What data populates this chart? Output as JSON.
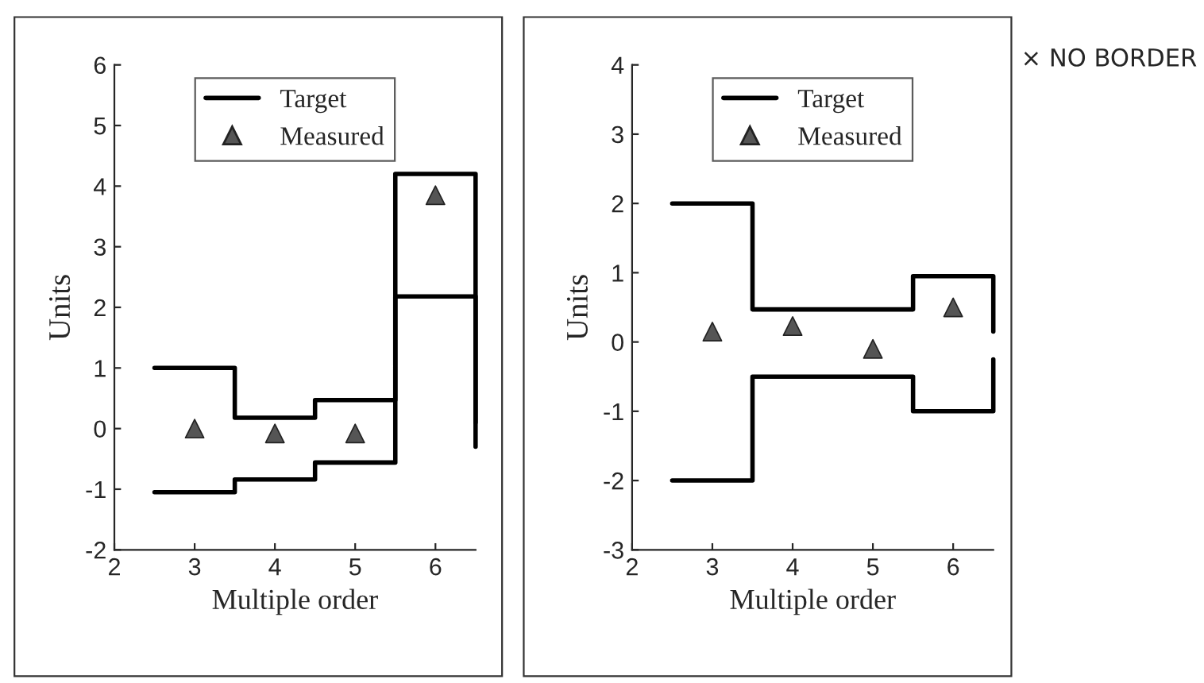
{
  "chart_data": [
    {
      "type": "line",
      "xlabel": "Multiple order",
      "ylabel": "Units",
      "xlim": [
        2,
        6.5
      ],
      "xticks": [
        2,
        3,
        4,
        5,
        6
      ],
      "ylim": [
        -2,
        6
      ],
      "yticks": [
        -2,
        -1,
        0,
        1,
        2,
        3,
        4,
        5,
        6
      ],
      "legend": "top",
      "grid": false,
      "series": [
        {
          "name": "Target",
          "color": "#000000",
          "line_style": "solid",
          "x": [
            2.5,
            3.5,
            3.5,
            4.5,
            4.5,
            5.5,
            5.5,
            6.5,
            6.5
          ],
          "values": [
            1.0,
            1.0,
            0.18,
            0.18,
            0.47,
            0.47,
            4.2,
            4.2,
            0.1
          ]
        },
        {
          "color": "#000000",
          "line_style": "solid",
          "x": [
            2.5,
            3.5,
            3.5,
            4.5,
            4.5,
            5.5,
            5.5,
            6.5,
            6.5
          ],
          "values": [
            -1.05,
            -1.05,
            -0.84,
            -0.84,
            -0.56,
            -0.56,
            2.18,
            2.18,
            -0.3
          ]
        },
        {
          "name": "Measured",
          "type": "scatter",
          "marker": "triangle",
          "color": "#555555",
          "x": [
            3,
            4,
            5,
            6
          ],
          "values": [
            0.0,
            -0.08,
            -0.08,
            3.85
          ]
        }
      ]
    },
    {
      "type": "line",
      "xlabel": "Multiple order",
      "ylabel": "Units",
      "xlim": [
        2,
        6.5
      ],
      "xticks": [
        2,
        3,
        4,
        5,
        6
      ],
      "ylim": [
        -3,
        4
      ],
      "yticks": [
        -3,
        -2,
        -1,
        0,
        1,
        2,
        3,
        4
      ],
      "legend": "top",
      "grid": false,
      "annotations": [
        "× NO BORDER"
      ],
      "series": [
        {
          "name": "Target",
          "color": "#000000",
          "line_style": "solid",
          "x": [
            2.5,
            3.5,
            3.5,
            5.5,
            5.5,
            6.5,
            6.5
          ],
          "values": [
            2.0,
            2.0,
            0.47,
            0.47,
            0.95,
            0.95,
            0.15
          ]
        },
        {
          "color": "#000000",
          "line_style": "solid",
          "x": [
            2.5,
            3.5,
            3.5,
            5.5,
            5.5,
            6.5,
            6.5
          ],
          "values": [
            -2.0,
            -2.0,
            -0.5,
            -0.5,
            -1.0,
            -1.0,
            -0.25
          ]
        },
        {
          "name": "Measured",
          "type": "scatter",
          "marker": "triangle",
          "color": "#555555",
          "x": [
            3,
            4,
            5,
            6
          ],
          "values": [
            0.15,
            0.23,
            -0.1,
            0.5
          ]
        }
      ]
    }
  ]
}
